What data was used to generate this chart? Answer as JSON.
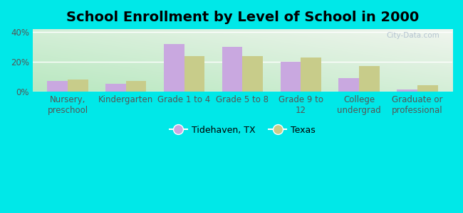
{
  "title": "School Enrollment by Level of School in 2000",
  "categories": [
    "Nursery,\npreschool",
    "Kindergarten",
    "Grade 1 to 4",
    "Grade 5 to 8",
    "Grade 9 to\n12",
    "College\nundergrad",
    "Graduate or\nprofessional"
  ],
  "tidehaven_values": [
    7,
    5,
    32,
    30,
    20,
    9,
    1.5
  ],
  "texas_values": [
    8,
    7,
    24,
    24,
    23,
    17,
    4
  ],
  "tidehaven_color": "#c9a8e0",
  "texas_color": "#c8cc8a",
  "background_outer": "#00e8e8",
  "gradient_top_left": "#cceedd",
  "gradient_top_right": "#f0f5ee",
  "gradient_bottom_right": "#ffffff",
  "ylim": [
    0,
    42
  ],
  "yticks": [
    0,
    20,
    40
  ],
  "ytick_labels": [
    "0%",
    "20%",
    "40%"
  ],
  "legend_label_1": "Tidehaven, TX",
  "legend_label_2": "Texas",
  "bar_width": 0.35,
  "title_fontsize": 14,
  "tick_fontsize": 8.5,
  "legend_fontsize": 9,
  "watermark": "City-Data.com"
}
